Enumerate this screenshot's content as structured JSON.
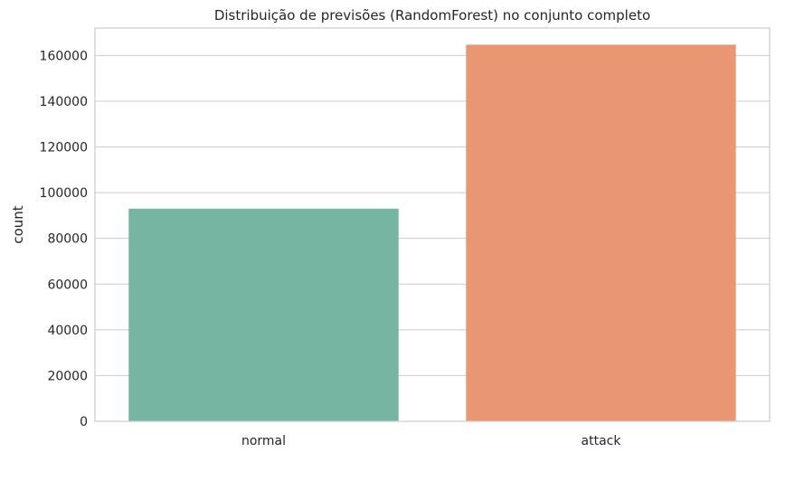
{
  "chart_data": {
    "type": "bar",
    "title": "Distribuição de previsões (RandomForest) no conjunto completo",
    "xlabel": "",
    "ylabel": "count",
    "categories": [
      "normal",
      "attack"
    ],
    "values": [
      93000,
      164700
    ],
    "colors": [
      "#75b5a1",
      "#e99673"
    ],
    "ylim": [
      0,
      172000
    ],
    "yticks": [
      0,
      20000,
      40000,
      60000,
      80000,
      100000,
      120000,
      140000,
      160000
    ],
    "grid": true,
    "legend": "none"
  }
}
